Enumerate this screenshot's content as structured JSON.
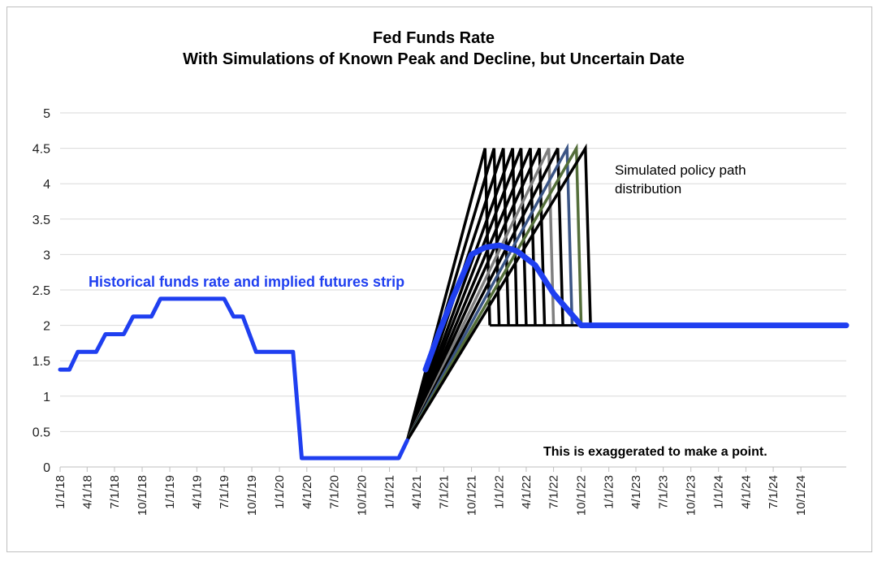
{
  "chart_data": {
    "type": "line",
    "title_line1": "Fed Funds Rate",
    "title_line2": "With Simulations of Known Peak and Decline, but Uncertain Date",
    "xlabel": "",
    "ylabel": "",
    "ylim": [
      0,
      5
    ],
    "yticks": [
      "0",
      "0.5",
      "1",
      "1.5",
      "2",
      "2.5",
      "3",
      "3.5",
      "4",
      "4.5",
      "5"
    ],
    "xlim": [
      "2018-01-01",
      "2025-03-01"
    ],
    "xticks": [
      "1/1/18",
      "4/1/18",
      "7/1/18",
      "10/1/18",
      "1/1/19",
      "4/1/19",
      "7/1/19",
      "10/1/19",
      "1/1/20",
      "4/1/20",
      "7/1/20",
      "10/1/20",
      "1/1/21",
      "4/1/21",
      "7/1/21",
      "10/1/21",
      "1/1/22",
      "4/1/22",
      "7/1/22",
      "10/1/22",
      "1/1/23",
      "4/1/23",
      "7/1/23",
      "10/1/23",
      "1/1/24",
      "4/1/24",
      "7/1/24",
      "10/1/24"
    ],
    "grid": "horizontal",
    "annotations": {
      "historical": "Historical funds rate and implied futures strip",
      "sim_line1": "Simulated policy path",
      "sim_line2": "distribution",
      "note": "This is exaggerated to make a point."
    },
    "colors": {
      "historical": "#1f3ff0",
      "simulations": "#000000",
      "sim_gray": "#7f7f7f",
      "sim_navy": "#3b5585",
      "sim_green": "#546e3a",
      "grid": "#d9d9d9"
    },
    "series": [
      {
        "role": "historical",
        "color": "#1f3ff0",
        "points": [
          [
            "2018-01-01",
            1.375
          ],
          [
            "2018-02-01",
            1.375
          ],
          [
            "2018-03-01",
            1.625
          ],
          [
            "2018-05-01",
            1.625
          ],
          [
            "2018-06-01",
            1.875
          ],
          [
            "2018-08-01",
            1.875
          ],
          [
            "2018-09-01",
            2.125
          ],
          [
            "2018-11-01",
            2.125
          ],
          [
            "2018-12-01",
            2.375
          ],
          [
            "2019-07-01",
            2.375
          ],
          [
            "2019-08-01",
            2.125
          ],
          [
            "2019-09-01",
            2.125
          ],
          [
            "2019-10-15",
            1.625
          ],
          [
            "2020-02-15",
            1.625
          ],
          [
            "2020-03-15",
            0.125
          ],
          [
            "2021-02-01",
            0.125
          ],
          [
            "2021-03-01",
            0.375
          ]
        ]
      },
      {
        "role": "futures_strip",
        "color": "#1f3ff0",
        "points": [
          [
            "2021-05-01",
            1.375
          ],
          [
            "2021-06-15",
            1.9
          ],
          [
            "2021-08-01",
            2.4
          ],
          [
            "2021-10-01",
            3.0
          ],
          [
            "2021-11-15",
            3.1
          ],
          [
            "2022-01-01",
            3.13
          ],
          [
            "2022-03-01",
            3.05
          ],
          [
            "2022-05-01",
            2.85
          ],
          [
            "2022-07-01",
            2.45
          ],
          [
            "2022-10-01",
            2.0
          ],
          [
            "2025-03-01",
            2.0
          ]
        ]
      }
    ],
    "simulations": [
      {
        "color": "#000000",
        "start": [
          "2021-03-01",
          0.375
        ],
        "peak": [
          "2021-11-15",
          4.5
        ],
        "end": [
          "2021-12-01",
          2.0
        ]
      },
      {
        "color": "#000000",
        "start": [
          "2021-03-01",
          0.375
        ],
        "peak": [
          "2021-12-15",
          4.5
        ],
        "end": [
          "2022-01-01",
          2.0
        ]
      },
      {
        "color": "#000000",
        "start": [
          "2021-03-01",
          0.375
        ],
        "peak": [
          "2022-01-15",
          4.5
        ],
        "end": [
          "2022-02-01",
          2.0
        ]
      },
      {
        "color": "#000000",
        "start": [
          "2021-03-01",
          0.375
        ],
        "peak": [
          "2022-02-15",
          4.5
        ],
        "end": [
          "2022-03-01",
          2.0
        ]
      },
      {
        "color": "#000000",
        "start": [
          "2021-03-01",
          0.375
        ],
        "peak": [
          "2022-03-15",
          4.5
        ],
        "end": [
          "2022-04-01",
          2.0
        ]
      },
      {
        "color": "#000000",
        "start": [
          "2021-03-01",
          0.375
        ],
        "peak": [
          "2022-04-15",
          4.5
        ],
        "end": [
          "2022-05-01",
          2.0
        ]
      },
      {
        "color": "#000000",
        "start": [
          "2021-03-01",
          0.375
        ],
        "peak": [
          "2022-05-15",
          4.5
        ],
        "end": [
          "2022-06-01",
          2.0
        ]
      },
      {
        "color": "#7f7f7f",
        "start": [
          "2021-03-01",
          0.375
        ],
        "peak": [
          "2022-06-15",
          4.5
        ],
        "end": [
          "2022-07-01",
          2.0
        ]
      },
      {
        "color": "#000000",
        "start": [
          "2021-03-01",
          0.375
        ],
        "peak": [
          "2022-07-15",
          4.5
        ],
        "end": [
          "2022-08-01",
          2.0
        ]
      },
      {
        "color": "#3b5585",
        "start": [
          "2021-03-01",
          0.375
        ],
        "peak": [
          "2022-08-15",
          4.5
        ],
        "end": [
          "2022-09-01",
          2.0
        ]
      },
      {
        "color": "#546e3a",
        "start": [
          "2021-03-01",
          0.375
        ],
        "peak": [
          "2022-09-15",
          4.5
        ],
        "end": [
          "2022-10-01",
          2.0
        ]
      },
      {
        "color": "#000000",
        "start": [
          "2021-03-01",
          0.375
        ],
        "peak": [
          "2022-10-15",
          4.5
        ],
        "end": [
          "2022-11-01",
          2.0
        ]
      }
    ]
  }
}
